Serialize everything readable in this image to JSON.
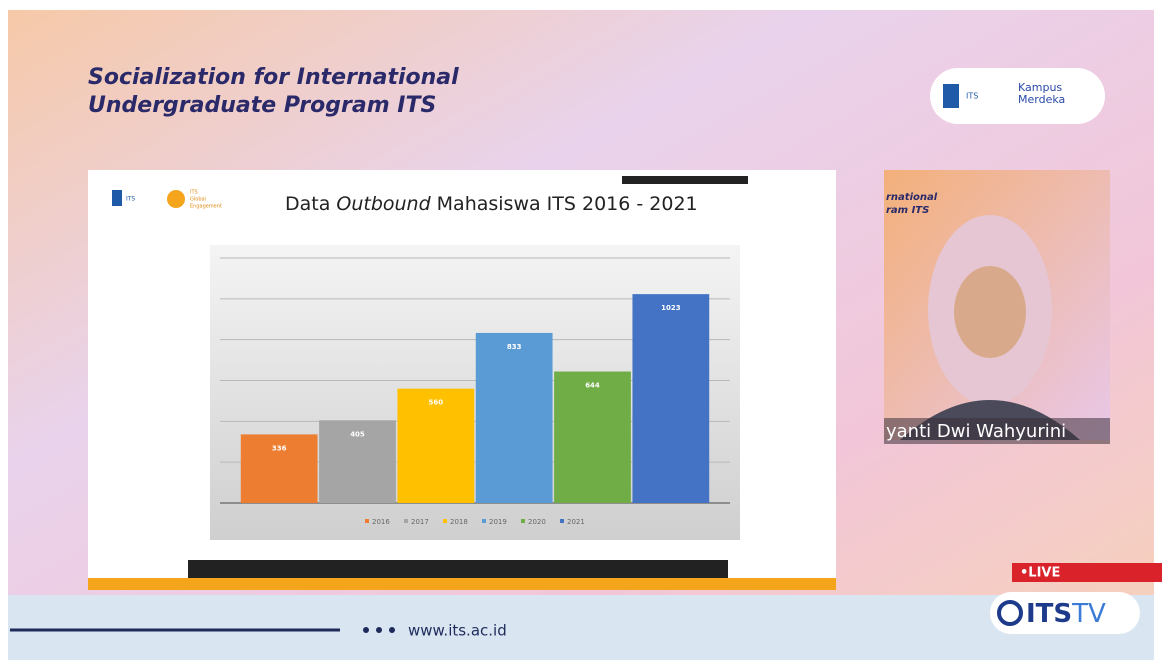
{
  "header": {
    "title_lines": [
      "Socialization for International",
      "Undergraduate Program ITS"
    ]
  },
  "logos": {
    "its": "ITS",
    "kampus_merdeka": [
      "Kampus",
      "Merdeka"
    ],
    "global_engagement": [
      "ITS",
      "Global",
      "Engagement"
    ]
  },
  "chart_data": {
    "type": "bar",
    "title": "Data",
    "title_emphasis": "Outbound",
    "title_rest": "Mahasiswa ITS 2016 - 2021",
    "categories": [
      "2016",
      "2017",
      "2018",
      "2019",
      "2020",
      "2021"
    ],
    "values": [
      336,
      405,
      560,
      833,
      644,
      1023
    ],
    "colors": [
      "#ed7d31",
      "#a5a5a5",
      "#ffc000",
      "#5b9bd5",
      "#70ad47",
      "#4472c4"
    ],
    "ylim": [
      0,
      1200
    ],
    "gridlines": [
      200,
      400,
      600,
      800,
      1000,
      1200
    ],
    "legend": "bottom"
  },
  "webcam": {
    "overlay_lines": [
      "rnational",
      "ram ITS"
    ],
    "speaker": "yanti Dwi Wahyurini"
  },
  "live": "•LIVE",
  "tv": {
    "its": "ITS",
    "tv": "TV"
  },
  "footer": {
    "url": "www.its.ac.id"
  }
}
